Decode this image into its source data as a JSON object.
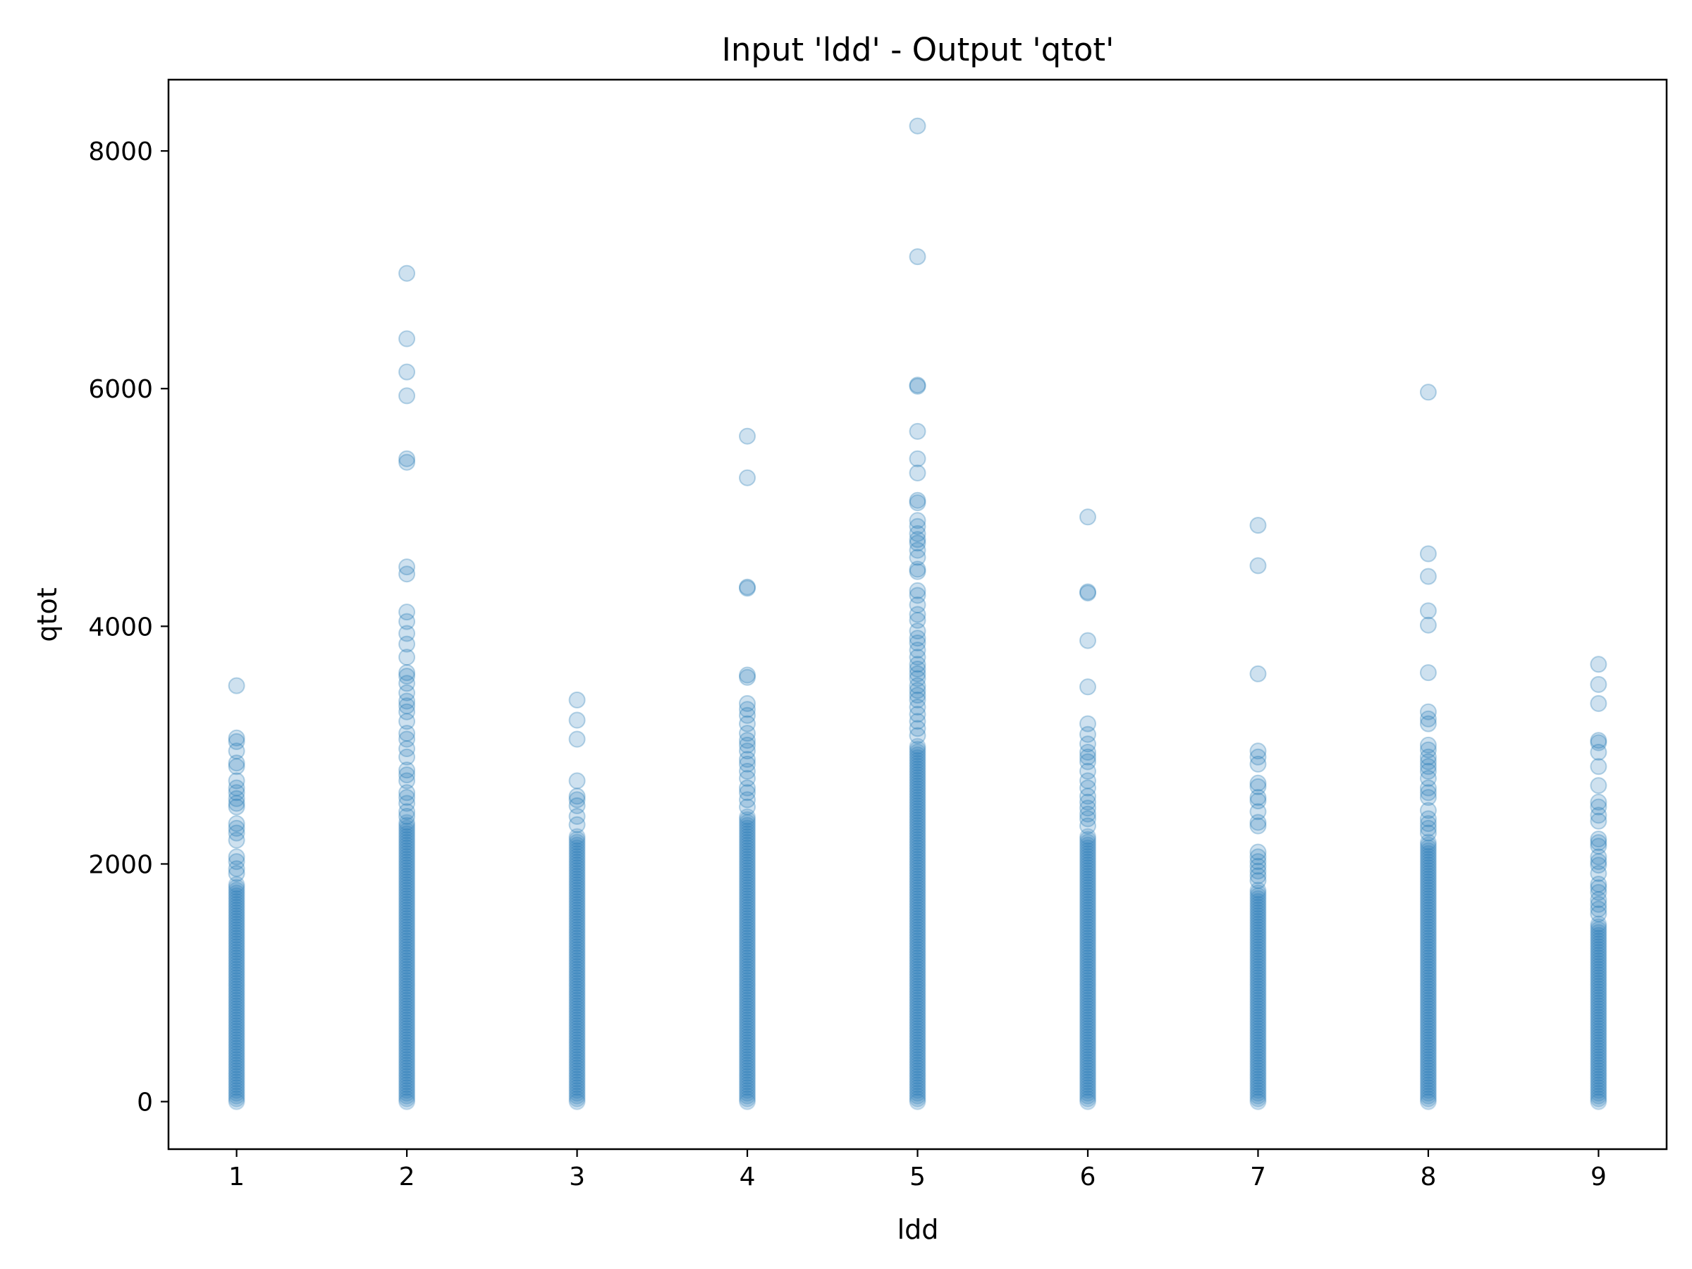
{
  "chart_data": {
    "type": "scatter",
    "title": "Input 'ldd' - Output 'qtot'",
    "xlabel": "ldd",
    "ylabel": "qtot",
    "xlim": [
      0.6,
      9.4
    ],
    "ylim": [
      -400,
      8600
    ],
    "xticks": [
      1,
      2,
      3,
      4,
      5,
      6,
      7,
      8,
      9
    ],
    "xtick_labels": [
      "1",
      "2",
      "3",
      "4",
      "5",
      "6",
      "7",
      "8",
      "9"
    ],
    "yticks": [
      0,
      2000,
      4000,
      6000,
      8000
    ],
    "ytick_labels": [
      "0",
      "2000",
      "4000",
      "6000",
      "8000"
    ],
    "grid": false,
    "marker_color": "#1f77b4",
    "marker_alpha": 0.22,
    "series": [
      {
        "x": 1,
        "dense_max": 1850,
        "outliers": [
          3500,
          3060,
          3030,
          2950,
          2850,
          2820,
          2700,
          2640,
          2600,
          2550,
          2510,
          2480,
          2340,
          2300,
          2260,
          2200,
          2060,
          2020,
          1960,
          1920
        ]
      },
      {
        "x": 2,
        "dense_max": 2350,
        "outliers": [
          6970,
          6420,
          6140,
          5940,
          5410,
          5380,
          4500,
          4440,
          4120,
          4040,
          3940,
          3850,
          3740,
          3610,
          3580,
          3520,
          3440,
          3370,
          3330,
          3280,
          3200,
          3100,
          3050,
          2970,
          2900,
          2790,
          2750,
          2700,
          2600,
          2560,
          2510,
          2440,
          2400
        ]
      },
      {
        "x": 3,
        "dense_max": 2250,
        "outliers": [
          3380,
          3210,
          3050,
          2700,
          2570,
          2540,
          2490,
          2400,
          2330
        ]
      },
      {
        "x": 4,
        "dense_max": 2400,
        "outliers": [
          5600,
          5250,
          4330,
          4320,
          3590,
          3570,
          3350,
          3300,
          3250,
          3180,
          3100,
          3040,
          3000,
          2950,
          2880,
          2840,
          2780,
          2720,
          2640,
          2600,
          2540,
          2480
        ]
      },
      {
        "x": 5,
        "dense_max": 3000,
        "outliers": [
          8210,
          7110,
          6030,
          6020,
          5640,
          5410,
          5290,
          5060,
          5040,
          4890,
          4840,
          4780,
          4730,
          4700,
          4640,
          4580,
          4480,
          4460,
          4300,
          4260,
          4180,
          4100,
          4050,
          3960,
          3900,
          3860,
          3800,
          3740,
          3680,
          3640,
          3600,
          3560,
          3500,
          3460,
          3420,
          3380,
          3320,
          3260,
          3200,
          3140,
          3080
        ]
      },
      {
        "x": 6,
        "dense_max": 2250,
        "outliers": [
          4920,
          4290,
          4280,
          3880,
          3490,
          3180,
          3090,
          3010,
          2940,
          2900,
          2860,
          2780,
          2700,
          2640,
          2570,
          2520,
          2470,
          2420,
          2380,
          2320
        ]
      },
      {
        "x": 7,
        "dense_max": 1800,
        "outliers": [
          4850,
          4510,
          3600,
          2950,
          2900,
          2840,
          2680,
          2650,
          2560,
          2530,
          2440,
          2350,
          2320,
          2100,
          2060,
          2020,
          1980,
          1940,
          1900,
          1860
        ]
      },
      {
        "x": 8,
        "dense_max": 2200,
        "outliers": [
          5970,
          4610,
          4420,
          4130,
          4010,
          3610,
          3280,
          3220,
          3180,
          3000,
          2960,
          2900,
          2860,
          2820,
          2780,
          2720,
          2640,
          2600,
          2560,
          2450,
          2380,
          2340,
          2300,
          2260
        ]
      },
      {
        "x": 9,
        "dense_max": 1500,
        "outliers": [
          3680,
          3510,
          3350,
          3040,
          3020,
          2940,
          2820,
          2660,
          2520,
          2480,
          2410,
          2360,
          2210,
          2180,
          2150,
          2060,
          2020,
          1990,
          1920,
          1830,
          1800,
          1760,
          1700,
          1660,
          1620,
          1580
        ]
      }
    ]
  }
}
